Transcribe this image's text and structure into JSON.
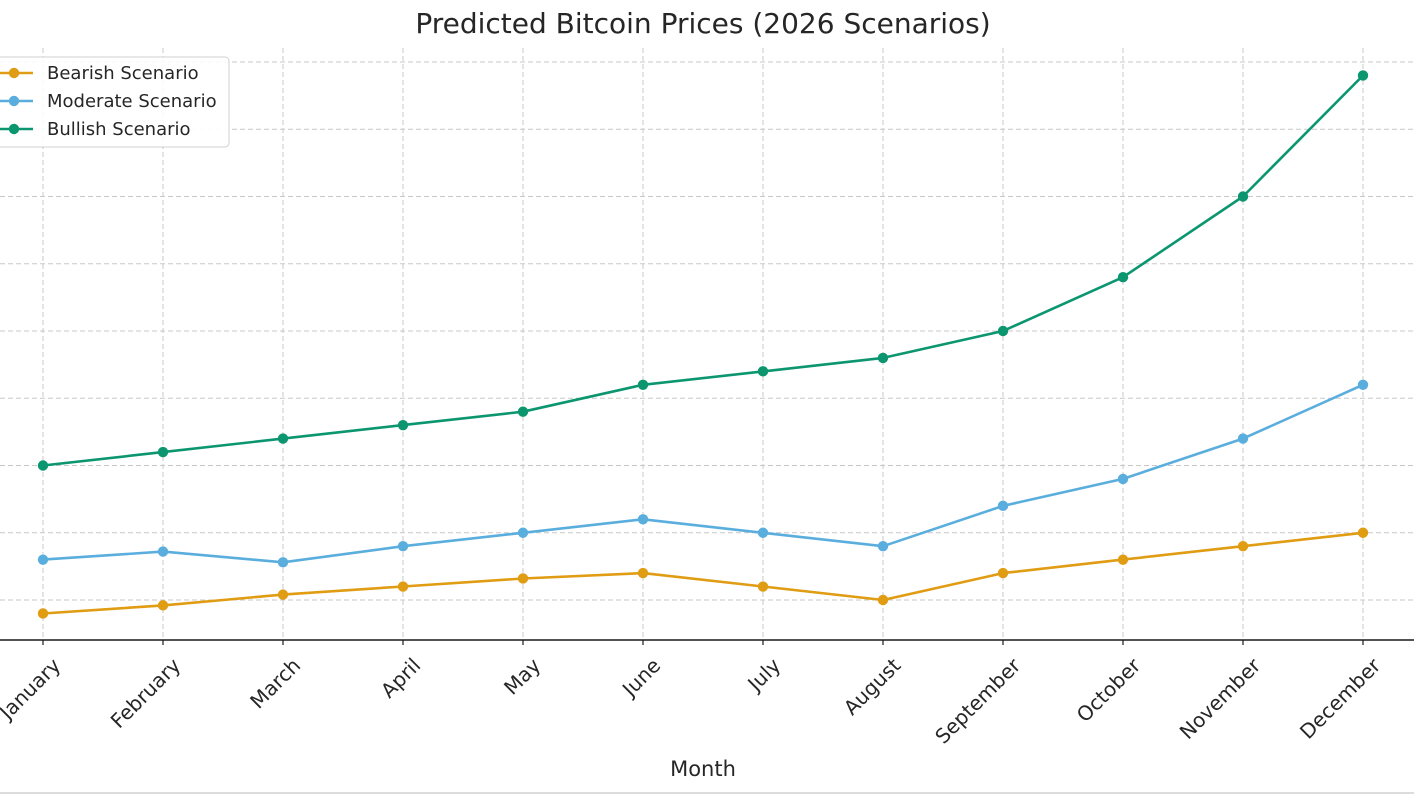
{
  "colors": {
    "bearish": "#e09c12",
    "moderate": "#5aaede",
    "bullish": "#0c9670",
    "grid": "#c8c8c8",
    "axis": "#1a1a1a",
    "text": "#262626"
  },
  "chart_data": {
    "type": "line",
    "title": "Predicted Bitcoin Prices (2026 Scenarios)",
    "xlabel": "Month",
    "ylabel": "",
    "grid": true,
    "legend_position": "top-left",
    "categories": [
      "January",
      "February",
      "March",
      "April",
      "May",
      "June",
      "July",
      "August",
      "September",
      "October",
      "November",
      "December"
    ],
    "ylim": [
      -3,
      41
    ],
    "y_gridlines": [
      0,
      5,
      10,
      15,
      20,
      25,
      30,
      35,
      40
    ],
    "series": [
      {
        "name": "Bearish Scenario",
        "color_key": "bearish",
        "values": [
          -1,
          -0.4,
          0.4,
          1,
          1.6,
          2,
          1,
          0,
          2,
          3,
          4,
          5
        ]
      },
      {
        "name": "Moderate Scenario",
        "color_key": "moderate",
        "values": [
          3,
          3.6,
          2.8,
          4,
          5,
          6,
          5,
          4,
          7,
          9,
          12,
          16
        ]
      },
      {
        "name": "Bullish Scenario",
        "color_key": "bullish",
        "values": [
          10,
          11,
          12,
          13,
          14,
          16,
          17,
          18,
          20,
          24,
          30,
          39
        ]
      }
    ]
  }
}
